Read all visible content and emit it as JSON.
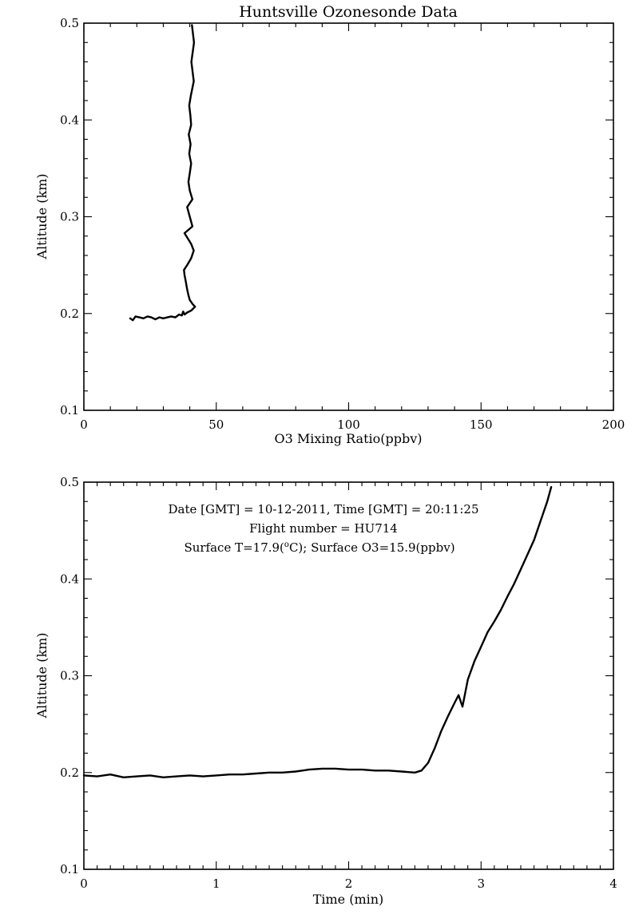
{
  "title": "Huntsville Ozonesonde Data",
  "chart_data": [
    {
      "type": "line",
      "xlabel": "O3 Mixing Ratio(ppbv)",
      "ylabel": "Altitude (km)",
      "xlim": [
        0,
        200
      ],
      "ylim": [
        0.1,
        0.5
      ],
      "xticks": [
        "0",
        "50",
        "100",
        "150",
        "200"
      ],
      "yticks": [
        "0.1",
        "0.2",
        "0.3",
        "0.4",
        "0.5"
      ],
      "grid": false,
      "series": [
        {
          "x": [
            17.5,
            18.5,
            19.5,
            21,
            22.5,
            24,
            25.5,
            27,
            28.5,
            30,
            31.5,
            33,
            34.5,
            36,
            37,
            37.5,
            38,
            39,
            40.5,
            42,
            41,
            40,
            39.5,
            39,
            38.5,
            38,
            37.8,
            39,
            40.5,
            41.5,
            40.5,
            38,
            41,
            40,
            39,
            41,
            40,
            39.5,
            40,
            40.5,
            39.8,
            40.3,
            39.6,
            40.5,
            40.2,
            39.8,
            40.4,
            41.5,
            40.6,
            41.6,
            40.8
          ],
          "y": [
            0.195,
            0.193,
            0.197,
            0.196,
            0.195,
            0.197,
            0.196,
            0.194,
            0.196,
            0.195,
            0.196,
            0.197,
            0.196,
            0.199,
            0.198,
            0.202,
            0.199,
            0.201,
            0.203,
            0.207,
            0.21,
            0.214,
            0.219,
            0.225,
            0.233,
            0.24,
            0.245,
            0.25,
            0.257,
            0.265,
            0.272,
            0.283,
            0.29,
            0.3,
            0.31,
            0.318,
            0.327,
            0.336,
            0.345,
            0.355,
            0.365,
            0.375,
            0.385,
            0.395,
            0.405,
            0.415,
            0.425,
            0.44,
            0.46,
            0.48,
            0.498
          ]
        }
      ]
    },
    {
      "type": "line",
      "xlabel": "Time (min)",
      "ylabel": "Altitude (km)",
      "xlim": [
        0,
        4
      ],
      "ylim": [
        0.1,
        0.5
      ],
      "xticks": [
        "0",
        "1",
        "2",
        "3",
        "4"
      ],
      "yticks": [
        "0.1",
        "0.2",
        "0.3",
        "0.4",
        "0.5"
      ],
      "grid": false,
      "series": [
        {
          "x": [
            0.0,
            0.1,
            0.2,
            0.3,
            0.4,
            0.5,
            0.6,
            0.7,
            0.8,
            0.9,
            1.0,
            1.1,
            1.2,
            1.3,
            1.4,
            1.5,
            1.6,
            1.7,
            1.8,
            1.9,
            2.0,
            2.1,
            2.2,
            2.3,
            2.4,
            2.5,
            2.55,
            2.6,
            2.65,
            2.7,
            2.75,
            2.8,
            2.83,
            2.86,
            2.9,
            2.95,
            3.0,
            3.05,
            3.1,
            3.15,
            3.2,
            3.25,
            3.3,
            3.35,
            3.4,
            3.45,
            3.5,
            3.53
          ],
          "y": [
            0.197,
            0.196,
            0.198,
            0.195,
            0.196,
            0.197,
            0.195,
            0.196,
            0.197,
            0.196,
            0.197,
            0.198,
            0.198,
            0.199,
            0.2,
            0.2,
            0.201,
            0.203,
            0.204,
            0.204,
            0.203,
            0.203,
            0.202,
            0.202,
            0.201,
            0.2,
            0.202,
            0.21,
            0.225,
            0.243,
            0.258,
            0.272,
            0.28,
            0.268,
            0.296,
            0.315,
            0.33,
            0.345,
            0.356,
            0.368,
            0.382,
            0.395,
            0.41,
            0.425,
            0.44,
            0.46,
            0.48,
            0.495
          ]
        }
      ]
    }
  ],
  "annotation": {
    "line1": "Date [GMT] = 10-12-2011,  Time [GMT] = 20:11:25",
    "line2": "Flight number = HU714",
    "line3_prefix": "Surface T=17.9(",
    "line3_sup": "o",
    "line3_suffix": "C); Surface O3=15.9(ppbv)"
  }
}
